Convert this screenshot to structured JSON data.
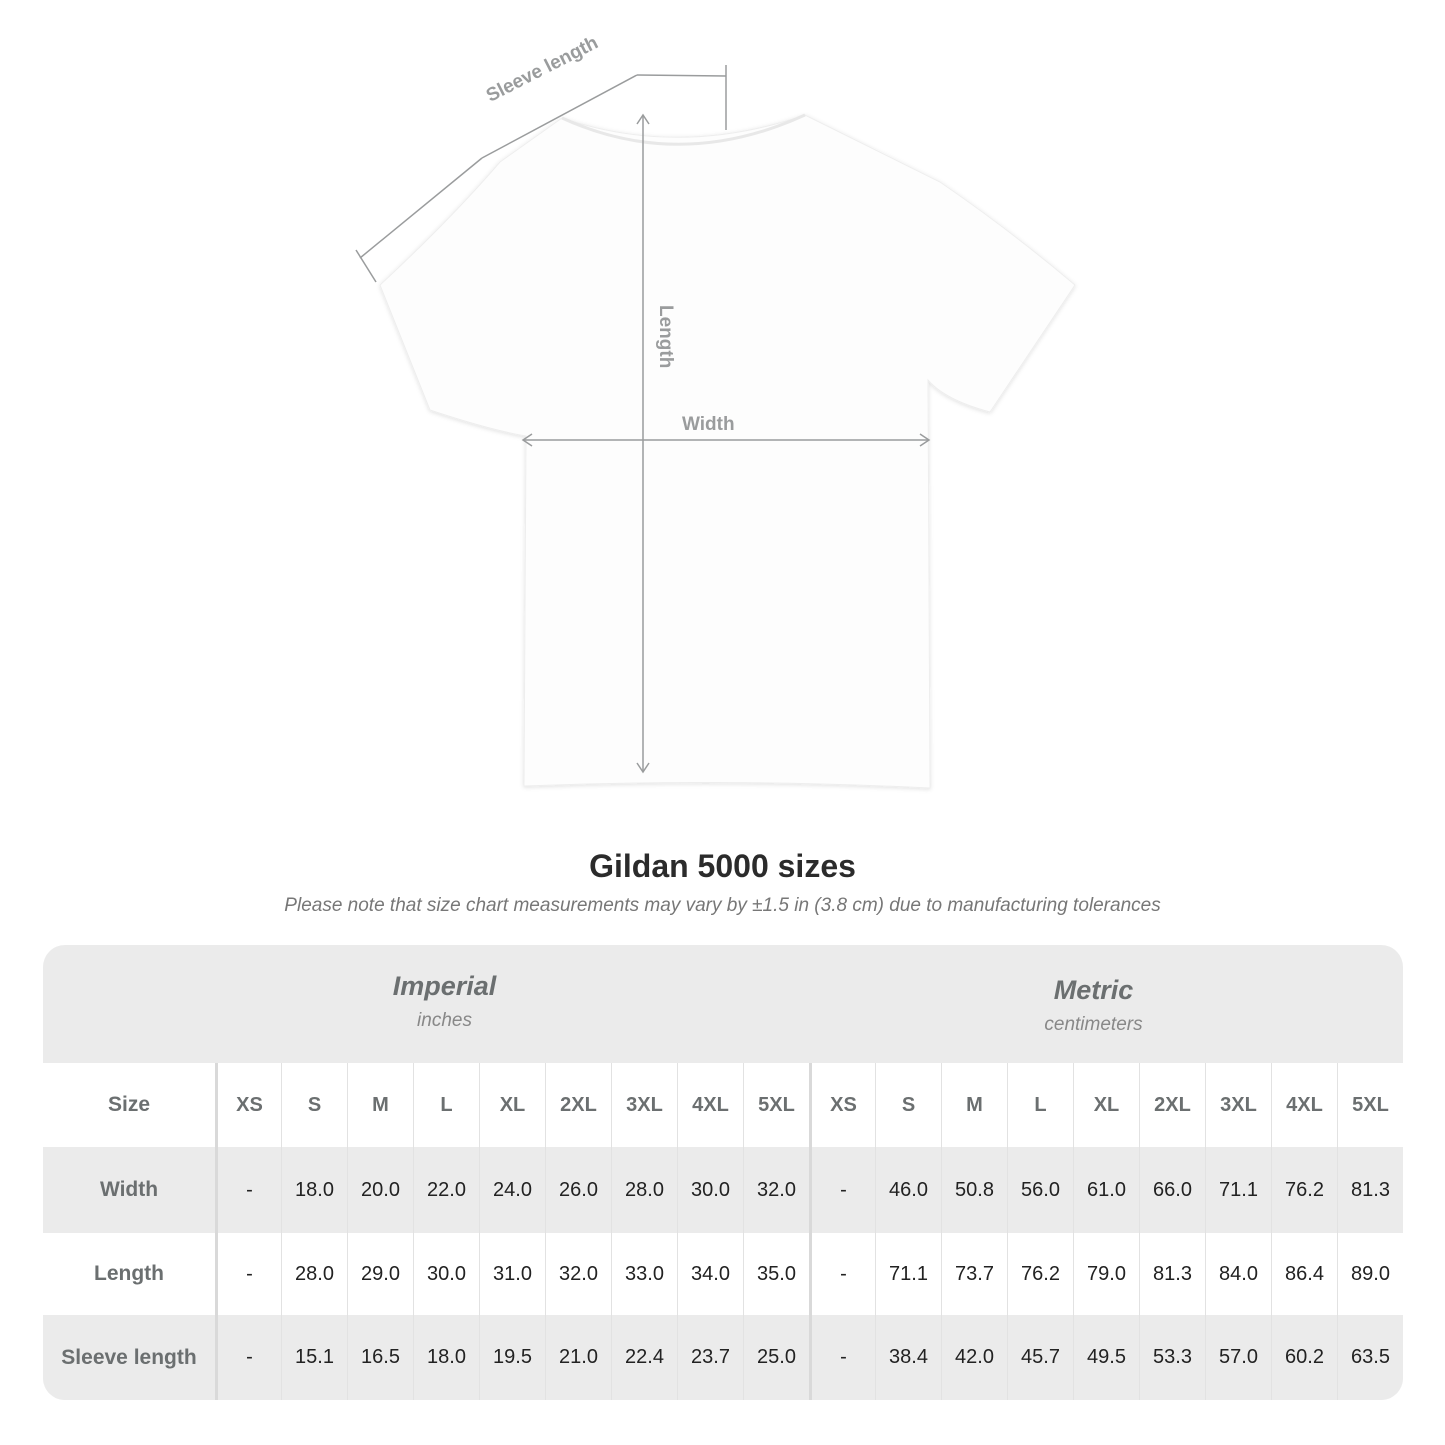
{
  "diagram": {
    "labels": {
      "sleeve": "Sleeve length",
      "length": "Length",
      "width": "Width"
    }
  },
  "title": "Gildan 5000 sizes",
  "note": "Please note that size chart measurements may vary by ±1.5 in (3.8 cm) due to manufacturing tolerances",
  "table": {
    "imperial": {
      "name": "Imperial",
      "unit": "inches"
    },
    "metric": {
      "name": "Metric",
      "unit": "centimeters"
    },
    "size_label": "Size",
    "sizes": [
      "XS",
      "S",
      "M",
      "L",
      "XL",
      "2XL",
      "3XL",
      "4XL",
      "5XL"
    ],
    "rows": [
      {
        "label": "Width",
        "imperial": [
          "-",
          "18.0",
          "20.0",
          "22.0",
          "24.0",
          "26.0",
          "28.0",
          "30.0",
          "32.0"
        ],
        "metric": [
          "-",
          "46.0",
          "50.8",
          "56.0",
          "61.0",
          "66.0",
          "71.1",
          "76.2",
          "81.3"
        ]
      },
      {
        "label": "Length",
        "imperial": [
          "-",
          "28.0",
          "29.0",
          "30.0",
          "31.0",
          "32.0",
          "33.0",
          "34.0",
          "35.0"
        ],
        "metric": [
          "-",
          "71.1",
          "73.7",
          "76.2",
          "79.0",
          "81.3",
          "84.0",
          "86.4",
          "89.0"
        ]
      },
      {
        "label": "Sleeve length",
        "imperial": [
          "-",
          "15.1",
          "16.5",
          "18.0",
          "19.5",
          "21.0",
          "22.4",
          "23.7",
          "25.0"
        ],
        "metric": [
          "-",
          "38.4",
          "42.0",
          "45.7",
          "49.5",
          "53.3",
          "57.0",
          "60.2",
          "63.5"
        ]
      }
    ]
  }
}
